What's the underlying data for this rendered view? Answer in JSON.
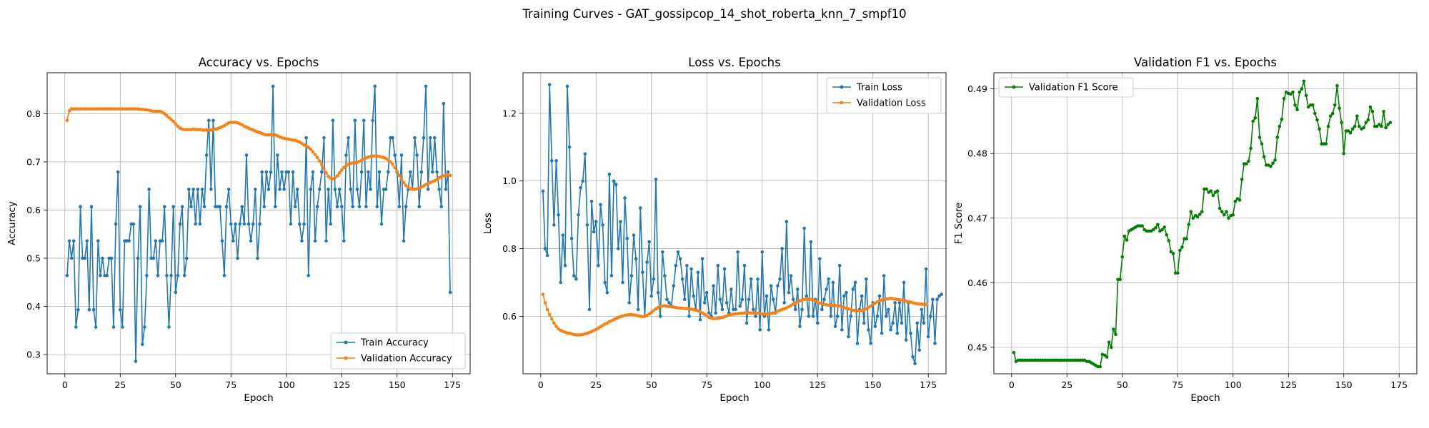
{
  "figure_title": "Training Curves - GAT_gossipcop_14_shot_roberta_knn_7_smpf10",
  "colors": {
    "train": "#1f77b4",
    "val": "#ff7f0e",
    "f1": "#008000",
    "grid": "#b0b0b0"
  },
  "chart_data": [
    {
      "type": "line",
      "title": "Accuracy vs. Epochs",
      "xlabel": "Epoch",
      "ylabel": "Accuracy",
      "xlim": [
        -8,
        183
      ],
      "ylim": [
        0.26,
        0.885
      ],
      "xticks": [
        0,
        25,
        50,
        75,
        100,
        125,
        150,
        175
      ],
      "yticks": [
        0.3,
        0.4,
        0.5,
        0.6,
        0.7,
        0.8
      ],
      "yformat": 1,
      "grid": true,
      "legend": "lower-right",
      "series": [
        {
          "name": "Train Accuracy",
          "color": "#1f77b4",
          "values": [
            0.464,
            0.536,
            0.5,
            0.536,
            0.357,
            0.393,
            0.607,
            0.5,
            0.5,
            0.536,
            0.393,
            0.607,
            0.393,
            0.357,
            0.536,
            0.464,
            0.5,
            0.464,
            0.464,
            0.5,
            0.5,
            0.357,
            0.571,
            0.679,
            0.393,
            0.357,
            0.536,
            0.536,
            0.536,
            0.571,
            0.571,
            0.286,
            0.5,
            0.607,
            0.321,
            0.357,
            0.464,
            0.643,
            0.5,
            0.5,
            0.536,
            0.464,
            0.536,
            0.536,
            0.607,
            0.464,
            0.357,
            0.464,
            0.607,
            0.429,
            0.464,
            0.571,
            0.607,
            0.464,
            0.5,
            0.643,
            0.607,
            0.643,
            0.571,
            0.643,
            0.571,
            0.643,
            0.607,
            0.714,
            0.786,
            0.643,
            0.786,
            0.607,
            0.607,
            0.607,
            0.536,
            0.464,
            0.607,
            0.643,
            0.571,
            0.536,
            0.571,
            0.5,
            0.571,
            0.607,
            0.571,
            0.714,
            0.571,
            0.536,
            0.571,
            0.643,
            0.5,
            0.571,
            0.679,
            0.607,
            0.679,
            0.643,
            0.679,
            0.857,
            0.607,
            0.714,
            0.643,
            0.679,
            0.643,
            0.679,
            0.679,
            0.571,
            0.679,
            0.607,
            0.643,
            0.571,
            0.536,
            0.571,
            0.75,
            0.464,
            0.643,
            0.679,
            0.536,
            0.607,
            0.643,
            0.679,
            0.75,
            0.536,
            0.643,
            0.571,
            0.786,
            0.643,
            0.607,
            0.643,
            0.607,
            0.536,
            0.714,
            0.75,
            0.643,
            0.607,
            0.786,
            0.643,
            0.607,
            0.679,
            0.786,
            0.607,
            0.679,
            0.643,
            0.786,
            0.857,
            0.607,
            0.679,
            0.571,
            0.643,
            0.643,
            0.679,
            0.75,
            0.75,
            0.714,
            0.679,
            0.607,
            0.714,
            0.536,
            0.607,
            0.643,
            0.679,
            0.643,
            0.75,
            0.714,
            0.607,
            0.679,
            0.75,
            0.857,
            0.643,
            0.75,
            0.679,
            0.75,
            0.679,
            0.643,
            0.607,
            0.821,
            0.643,
            0.679,
            0.429
          ]
        },
        {
          "name": "Validation Accuracy",
          "color": "#ff7f0e",
          "values": [
            0.786,
            0.806,
            0.81,
            0.81,
            0.81,
            0.81,
            0.81,
            0.81,
            0.81,
            0.81,
            0.81,
            0.81,
            0.81,
            0.81,
            0.81,
            0.81,
            0.81,
            0.81,
            0.81,
            0.81,
            0.81,
            0.81,
            0.81,
            0.81,
            0.81,
            0.81,
            0.81,
            0.81,
            0.81,
            0.81,
            0.81,
            0.81,
            0.81,
            0.809,
            0.809,
            0.808,
            0.808,
            0.807,
            0.806,
            0.805,
            0.805,
            0.805,
            0.805,
            0.803,
            0.8,
            0.796,
            0.792,
            0.788,
            0.784,
            0.779,
            0.774,
            0.77,
            0.768,
            0.767,
            0.767,
            0.767,
            0.767,
            0.768,
            0.767,
            0.767,
            0.767,
            0.766,
            0.766,
            0.766,
            0.766,
            0.766,
            0.767,
            0.768,
            0.769,
            0.771,
            0.773,
            0.775,
            0.778,
            0.781,
            0.782,
            0.782,
            0.782,
            0.781,
            0.779,
            0.777,
            0.774,
            0.772,
            0.77,
            0.768,
            0.766,
            0.764,
            0.762,
            0.761,
            0.759,
            0.757,
            0.756,
            0.756,
            0.756,
            0.756,
            0.756,
            0.754,
            0.752,
            0.75,
            0.749,
            0.748,
            0.747,
            0.746,
            0.745,
            0.745,
            0.743,
            0.741,
            0.738,
            0.735,
            0.733,
            0.73,
            0.726,
            0.721,
            0.715,
            0.709,
            0.702,
            0.694,
            0.685,
            0.677,
            0.67,
            0.666,
            0.665,
            0.667,
            0.671,
            0.677,
            0.683,
            0.688,
            0.692,
            0.695,
            0.697,
            0.698,
            0.698,
            0.699,
            0.701,
            0.703,
            0.706,
            0.708,
            0.71,
            0.711,
            0.712,
            0.712,
            0.712,
            0.711,
            0.71,
            0.709,
            0.707,
            0.704,
            0.7,
            0.695,
            0.688,
            0.68,
            0.672,
            0.664,
            0.657,
            0.651,
            0.647,
            0.644,
            0.643,
            0.643,
            0.644,
            0.646,
            0.648,
            0.65,
            0.653,
            0.655,
            0.657,
            0.659,
            0.661,
            0.664,
            0.667,
            0.669,
            0.671,
            0.672,
            0.673,
            0.672
          ]
        }
      ]
    },
    {
      "type": "line",
      "title": "Loss vs. Epochs",
      "xlabel": "Epoch",
      "ylabel": "Loss",
      "xlim": [
        -8,
        183
      ],
      "ylim": [
        0.43,
        1.32
      ],
      "xticks": [
        0,
        25,
        50,
        75,
        100,
        125,
        150,
        175
      ],
      "yticks": [
        0.6,
        0.8,
        1.0,
        1.2
      ],
      "yformat": 1,
      "grid": true,
      "legend": "top-right",
      "series": [
        {
          "name": "Train Loss",
          "color": "#1f77b4",
          "values": [
            0.97,
            0.8,
            0.78,
            1.285,
            1.06,
            0.87,
            1.06,
            0.9,
            0.7,
            0.84,
            0.75,
            1.28,
            1.1,
            0.83,
            0.72,
            0.71,
            0.9,
            0.98,
            1.0,
            1.08,
            0.87,
            0.62,
            0.94,
            0.85,
            0.88,
            0.75,
            0.93,
            0.87,
            0.7,
            0.67,
            1.02,
            0.72,
            1.0,
            0.99,
            0.8,
            0.88,
            0.7,
            0.95,
            0.83,
            0.64,
            0.72,
            0.84,
            0.77,
            0.62,
            0.92,
            0.73,
            0.6,
            0.76,
            0.82,
            0.66,
            0.71,
            1.005,
            0.67,
            0.6,
            0.79,
            0.72,
            0.65,
            0.64,
            0.63,
            0.69,
            0.75,
            0.79,
            0.77,
            0.71,
            0.65,
            0.75,
            0.6,
            0.74,
            0.66,
            0.62,
            0.73,
            0.59,
            0.77,
            0.64,
            0.67,
            0.61,
            0.6,
            0.69,
            0.61,
            0.75,
            0.65,
            0.62,
            0.74,
            0.64,
            0.61,
            0.68,
            0.62,
            0.62,
            0.79,
            0.63,
            0.65,
            0.75,
            0.58,
            0.65,
            0.71,
            0.62,
            0.6,
            0.71,
            0.56,
            0.79,
            0.6,
            0.66,
            0.56,
            0.69,
            0.65,
            0.61,
            0.69,
            0.71,
            0.8,
            0.64,
            0.88,
            0.67,
            0.72,
            0.65,
            0.62,
            0.68,
            0.57,
            0.62,
            0.86,
            0.66,
            0.6,
            0.82,
            0.6,
            0.65,
            0.58,
            0.77,
            0.62,
            0.65,
            0.68,
            0.71,
            0.6,
            0.7,
            0.57,
            0.6,
            0.75,
            0.56,
            0.66,
            0.67,
            0.54,
            0.6,
            0.68,
            0.7,
            0.52,
            0.62,
            0.66,
            0.58,
            0.71,
            0.56,
            0.52,
            0.64,
            0.57,
            0.6,
            0.66,
            0.55,
            0.72,
            0.6,
            0.62,
            0.56,
            0.58,
            0.64,
            0.55,
            0.64,
            0.58,
            0.7,
            0.53,
            0.64,
            0.55,
            0.48,
            0.46,
            0.58,
            0.5,
            0.62,
            0.58,
            0.74,
            0.54,
            0.6,
            0.65,
            0.52,
            0.65,
            0.66,
            0.665
          ]
        },
        {
          "name": "Validation Loss",
          "color": "#ff7f0e",
          "values": [
            0.665,
            0.64,
            0.62,
            0.605,
            0.592,
            0.58,
            0.57,
            0.563,
            0.558,
            0.555,
            0.553,
            0.551,
            0.55,
            0.548,
            0.546,
            0.545,
            0.545,
            0.545,
            0.546,
            0.548,
            0.55,
            0.552,
            0.555,
            0.558,
            0.561,
            0.565,
            0.569,
            0.573,
            0.577,
            0.58,
            0.584,
            0.587,
            0.59,
            0.593,
            0.596,
            0.599,
            0.601,
            0.603,
            0.604,
            0.605,
            0.605,
            0.604,
            0.603,
            0.601,
            0.6,
            0.599,
            0.6,
            0.603,
            0.607,
            0.612,
            0.617,
            0.622,
            0.626,
            0.629,
            0.63,
            0.631,
            0.63,
            0.629,
            0.628,
            0.627,
            0.626,
            0.625,
            0.624,
            0.624,
            0.623,
            0.623,
            0.622,
            0.621,
            0.62,
            0.618,
            0.616,
            0.613,
            0.61,
            0.606,
            0.601,
            0.597,
            0.594,
            0.593,
            0.593,
            0.594,
            0.595,
            0.597,
            0.599,
            0.601,
            0.603,
            0.605,
            0.606,
            0.607,
            0.608,
            0.609,
            0.609,
            0.61,
            0.61,
            0.61,
            0.61,
            0.61,
            0.609,
            0.609,
            0.608,
            0.607,
            0.606,
            0.606,
            0.607,
            0.608,
            0.61,
            0.612,
            0.615,
            0.618,
            0.62,
            0.622,
            0.625,
            0.628,
            0.632,
            0.636,
            0.64,
            0.643,
            0.646,
            0.648,
            0.65,
            0.651,
            0.651,
            0.65,
            0.648,
            0.645,
            0.642,
            0.639,
            0.637,
            0.635,
            0.634,
            0.633,
            0.633,
            0.632,
            0.632,
            0.631,
            0.63,
            0.628,
            0.626,
            0.624,
            0.622,
            0.62,
            0.618,
            0.617,
            0.616,
            0.616,
            0.617,
            0.619,
            0.622,
            0.626,
            0.63,
            0.635,
            0.639,
            0.643,
            0.646,
            0.648,
            0.65,
            0.651,
            0.652,
            0.653,
            0.652,
            0.651,
            0.65,
            0.649,
            0.648,
            0.646,
            0.645,
            0.643,
            0.642,
            0.64,
            0.638,
            0.637,
            0.636,
            0.636,
            0.635,
            0.635
          ]
        }
      ]
    },
    {
      "type": "line",
      "title": "Validation F1 vs. Epochs",
      "xlabel": "Epoch",
      "ylabel": "F1 Score",
      "xlim": [
        -8,
        183
      ],
      "ylim": [
        0.4459,
        0.4925
      ],
      "xticks": [
        0,
        25,
        50,
        75,
        100,
        125,
        150,
        175
      ],
      "yticks": [
        0.45,
        0.46,
        0.47,
        0.48,
        0.49
      ],
      "yformat": 2,
      "grid": true,
      "legend": "top-left",
      "series": [
        {
          "name": "Validation F1 Score",
          "color": "#008000",
          "values": [
            0.4492,
            0.4478,
            0.448,
            0.448,
            0.448,
            0.448,
            0.448,
            0.448,
            0.448,
            0.448,
            0.448,
            0.448,
            0.448,
            0.448,
            0.448,
            0.448,
            0.448,
            0.448,
            0.448,
            0.448,
            0.448,
            0.448,
            0.448,
            0.448,
            0.448,
            0.448,
            0.448,
            0.448,
            0.448,
            0.448,
            0.448,
            0.448,
            0.448,
            0.4478,
            0.4478,
            0.4476,
            0.4474,
            0.4472,
            0.447,
            0.447,
            0.4489,
            0.4488,
            0.4485,
            0.4508,
            0.45,
            0.4528,
            0.452,
            0.4605,
            0.4605,
            0.464,
            0.4672,
            0.4666,
            0.468,
            0.4682,
            0.4684,
            0.4686,
            0.4688,
            0.4688,
            0.4688,
            0.4682,
            0.468,
            0.468,
            0.468,
            0.4682,
            0.4685,
            0.469,
            0.468,
            0.4682,
            0.4686,
            0.4674,
            0.4665,
            0.4648,
            0.4645,
            0.4615,
            0.4615,
            0.465,
            0.4655,
            0.4668,
            0.4668,
            0.469,
            0.471,
            0.47,
            0.4704,
            0.4702,
            0.4706,
            0.471,
            0.4745,
            0.4745,
            0.474,
            0.4742,
            0.4735,
            0.474,
            0.4742,
            0.4715,
            0.471,
            0.4705,
            0.471,
            0.47,
            0.4704,
            0.4705,
            0.4726,
            0.473,
            0.4728,
            0.476,
            0.4784,
            0.4784,
            0.4788,
            0.4808,
            0.485,
            0.4855,
            0.4885,
            0.4825,
            0.4815,
            0.4795,
            0.4782,
            0.4782,
            0.478,
            0.4785,
            0.479,
            0.4825,
            0.4842,
            0.4853,
            0.4885,
            0.4895,
            0.4893,
            0.4892,
            0.4895,
            0.4875,
            0.4868,
            0.4895,
            0.49,
            0.4912,
            0.489,
            0.4872,
            0.4875,
            0.4875,
            0.4862,
            0.4852,
            0.4838,
            0.4815,
            0.4815,
            0.4815,
            0.4842,
            0.4858,
            0.4862,
            0.4875,
            0.4905,
            0.487,
            0.4848,
            0.48,
            0.4835,
            0.4835,
            0.4832,
            0.4838,
            0.4842,
            0.4858,
            0.4842,
            0.4838,
            0.484,
            0.4848,
            0.4852,
            0.4872,
            0.4865,
            0.4842,
            0.4842,
            0.4845,
            0.4842,
            0.4865,
            0.484,
            0.4845,
            0.4848
          ]
        }
      ]
    }
  ]
}
